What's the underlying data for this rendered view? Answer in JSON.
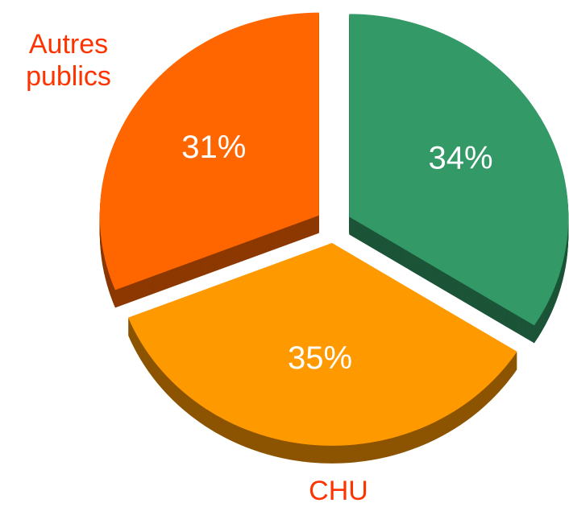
{
  "chart_data": {
    "type": "pie",
    "categories": [
      null,
      "CHU",
      "Autres publics"
    ],
    "values": [
      34,
      35,
      31
    ],
    "value_labels": [
      "34%",
      "35%",
      "31%"
    ],
    "colors": [
      "#339966",
      "#ff9900",
      "#ff6600"
    ]
  }
}
